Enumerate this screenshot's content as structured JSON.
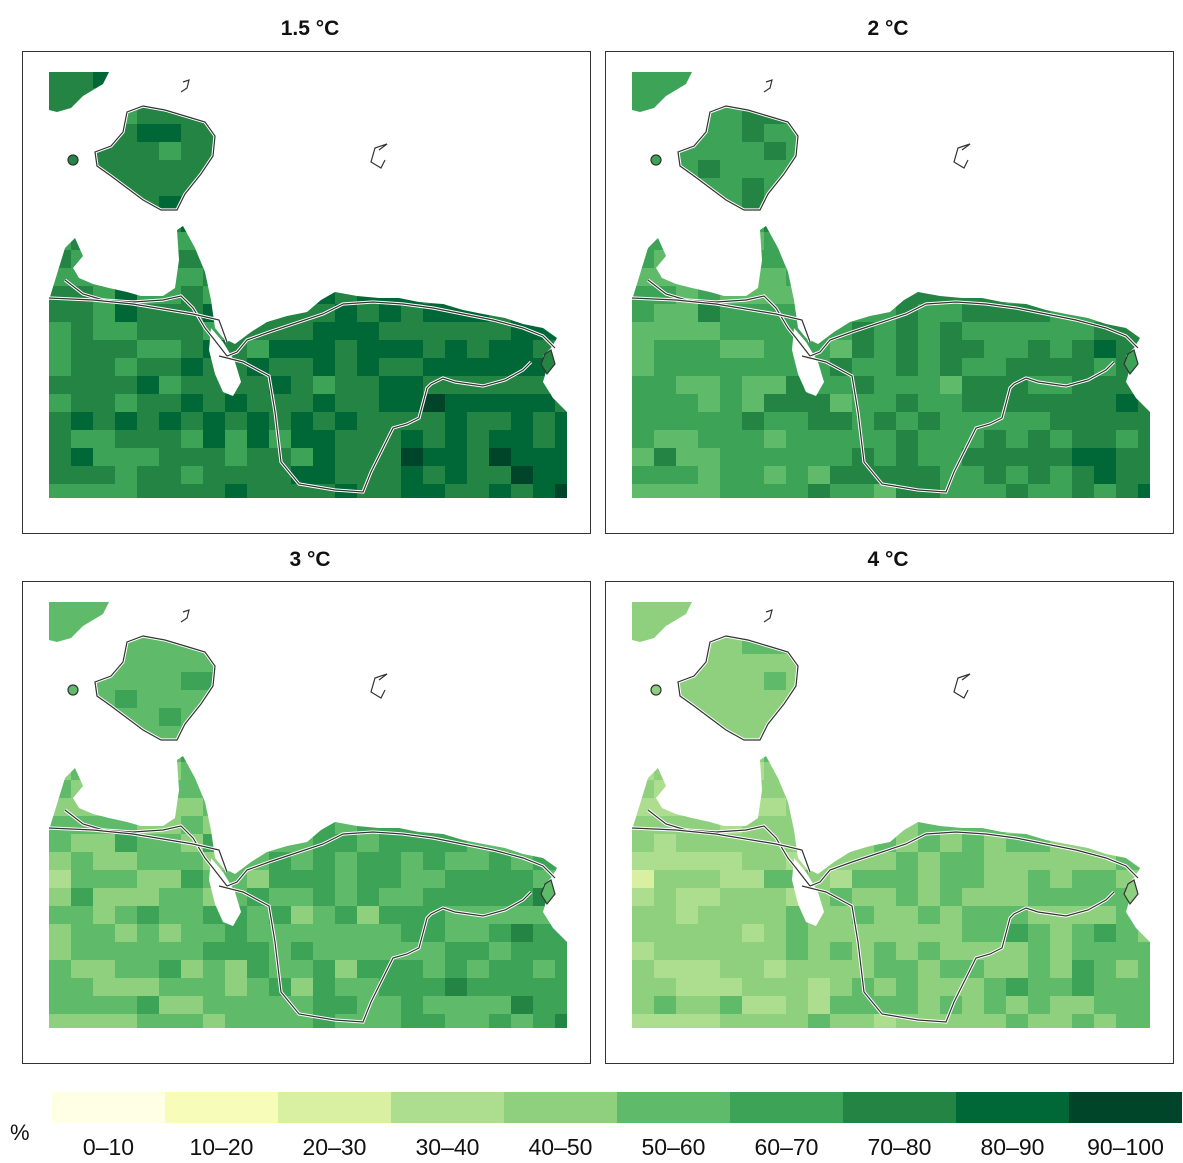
{
  "panels": [
    {
      "title": "1.5 °C",
      "shift": 0
    },
    {
      "title": "2 °C",
      "shift": -1
    },
    {
      "title": "3 °C",
      "shift": -2
    },
    {
      "title": "4 °C",
      "shift": -3
    }
  ],
  "legend": {
    "unit": "%",
    "classes": [
      {
        "label": "0–10",
        "color": "#ffffe5"
      },
      {
        "label": "10–20",
        "color": "#f7fcb9"
      },
      {
        "label": "20–30",
        "color": "#d9f0a3"
      },
      {
        "label": "30–40",
        "color": "#addd8e"
      },
      {
        "label": "40–50",
        "color": "#8fd07f"
      },
      {
        "label": "50–60",
        "color": "#5fba6a"
      },
      {
        "label": "60–70",
        "color": "#3da356"
      },
      {
        "label": "70–80",
        "color": "#238443"
      },
      {
        "label": "80–90",
        "color": "#006837"
      },
      {
        "label": "90–100",
        "color": "#004529"
      }
    ]
  }
}
